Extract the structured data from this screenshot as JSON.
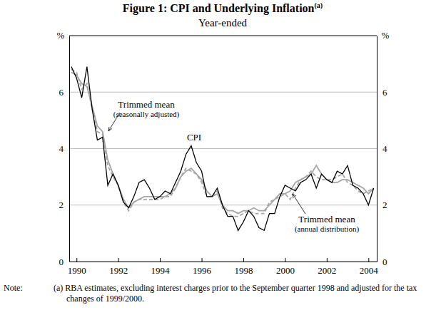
{
  "chart_data": {
    "type": "line",
    "title": "Figure 1: CPI and Underlying Inflation",
    "title_note": "(a)",
    "subtitle": "Year-ended",
    "y_label": "%",
    "x": [
      1989.75,
      1990,
      1990.25,
      1990.5,
      1990.75,
      1991,
      1991.25,
      1991.5,
      1991.75,
      1992,
      1992.25,
      1992.5,
      1992.75,
      1993,
      1993.25,
      1993.5,
      1993.75,
      1994,
      1994.25,
      1994.5,
      1994.75,
      1995,
      1995.25,
      1995.5,
      1995.75,
      1996,
      1996.25,
      1996.5,
      1996.75,
      1997,
      1997.25,
      1997.5,
      1997.75,
      1998,
      1998.25,
      1998.5,
      1998.75,
      1999,
      1999.25,
      1999.5,
      1999.75,
      2000,
      2000.25,
      2000.5,
      2000.75,
      2001,
      2001.25,
      2001.5,
      2001.75,
      2002,
      2002.25,
      2002.5,
      2002.75,
      2003,
      2003.25,
      2003.5,
      2003.75,
      2004,
      2004.25
    ],
    "series": [
      {
        "name": "CPI",
        "color": "#000000",
        "line_style": "solid",
        "values": [
          6.9,
          6.5,
          5.8,
          6.9,
          5.4,
          4.3,
          4.4,
          2.7,
          3.1,
          2.7,
          2.1,
          1.9,
          2.3,
          2.8,
          2.9,
          2.6,
          2.2,
          2.3,
          2.5,
          2.4,
          2.8,
          3.2,
          3.8,
          4.1,
          3.5,
          3.2,
          2.3,
          2.3,
          2.6,
          2.0,
          1.6,
          1.6,
          1.1,
          1.4,
          1.8,
          1.6,
          1.2,
          1.1,
          1.7,
          1.7,
          2.3,
          2.7,
          2.6,
          2.5,
          2.8,
          2.9,
          3.1,
          2.6,
          3.1,
          2.9,
          2.8,
          3.2,
          3.1,
          3.4,
          2.7,
          2.6,
          2.4,
          2.0,
          2.6
        ]
      },
      {
        "name": "Trimmed mean (seasonally adjusted)",
        "color": "#a6a6a6",
        "line_style": "solid",
        "values": [
          6.7,
          6.6,
          6.3,
          6.2,
          5.5,
          4.8,
          4.6,
          3.6,
          3.1,
          2.7,
          2.2,
          1.9,
          2.1,
          2.2,
          2.3,
          2.3,
          2.3,
          2.3,
          2.3,
          2.4,
          2.6,
          3.0,
          3.2,
          3.3,
          3.1,
          2.9,
          2.5,
          2.3,
          2.4,
          2.0,
          1.8,
          1.8,
          1.7,
          1.8,
          1.8,
          1.9,
          1.8,
          1.8,
          2.0,
          2.2,
          2.4,
          2.4,
          2.5,
          2.8,
          2.9,
          3.0,
          3.1,
          3.4,
          3.1,
          2.9,
          2.8,
          2.8,
          2.9,
          2.9,
          2.8,
          2.7,
          2.6,
          2.4,
          2.6
        ]
      },
      {
        "name": "Trimmed mean (annual distribution)",
        "color": "#a6a6a6",
        "line_style": "dashed",
        "values": [
          6.8,
          6.7,
          6.1,
          6.3,
          5.4,
          4.6,
          4.5,
          3.4,
          3.0,
          2.7,
          2.1,
          1.8,
          2.1,
          2.2,
          2.2,
          2.2,
          2.2,
          2.2,
          2.3,
          2.3,
          2.6,
          3.0,
          3.3,
          3.2,
          3.1,
          2.8,
          2.3,
          2.3,
          2.5,
          1.9,
          1.7,
          1.6,
          1.6,
          1.7,
          1.8,
          1.7,
          1.7,
          1.7,
          2.1,
          2.2,
          2.3,
          2.4,
          2.2,
          2.6,
          2.9,
          3.0,
          3.2,
          3.0,
          2.9,
          2.9,
          2.9,
          3.0,
          3.1,
          2.8,
          2.7,
          2.5,
          2.4,
          2.5,
          2.6
        ]
      }
    ],
    "annotations": [
      {
        "lines": [
          "Trimmed mean",
          "(seasonally adjusted)"
        ]
      },
      {
        "lines": [
          "CPI"
        ]
      },
      {
        "lines": [
          "Trimmed mean",
          "(annual distribution)"
        ]
      }
    ],
    "xlim": [
      1989.65,
      2004.4
    ],
    "xticks": [
      1990,
      1992,
      1994,
      1996,
      1998,
      2000,
      2002,
      2004
    ],
    "ylim": [
      0,
      8
    ],
    "yticks": [
      0,
      2,
      4,
      6
    ],
    "grid": true,
    "note_label": "Note:",
    "note": "(a) RBA estimates, excluding interest charges prior to the September quarter 1998 and adjusted for the tax changes of 1999/2000."
  }
}
